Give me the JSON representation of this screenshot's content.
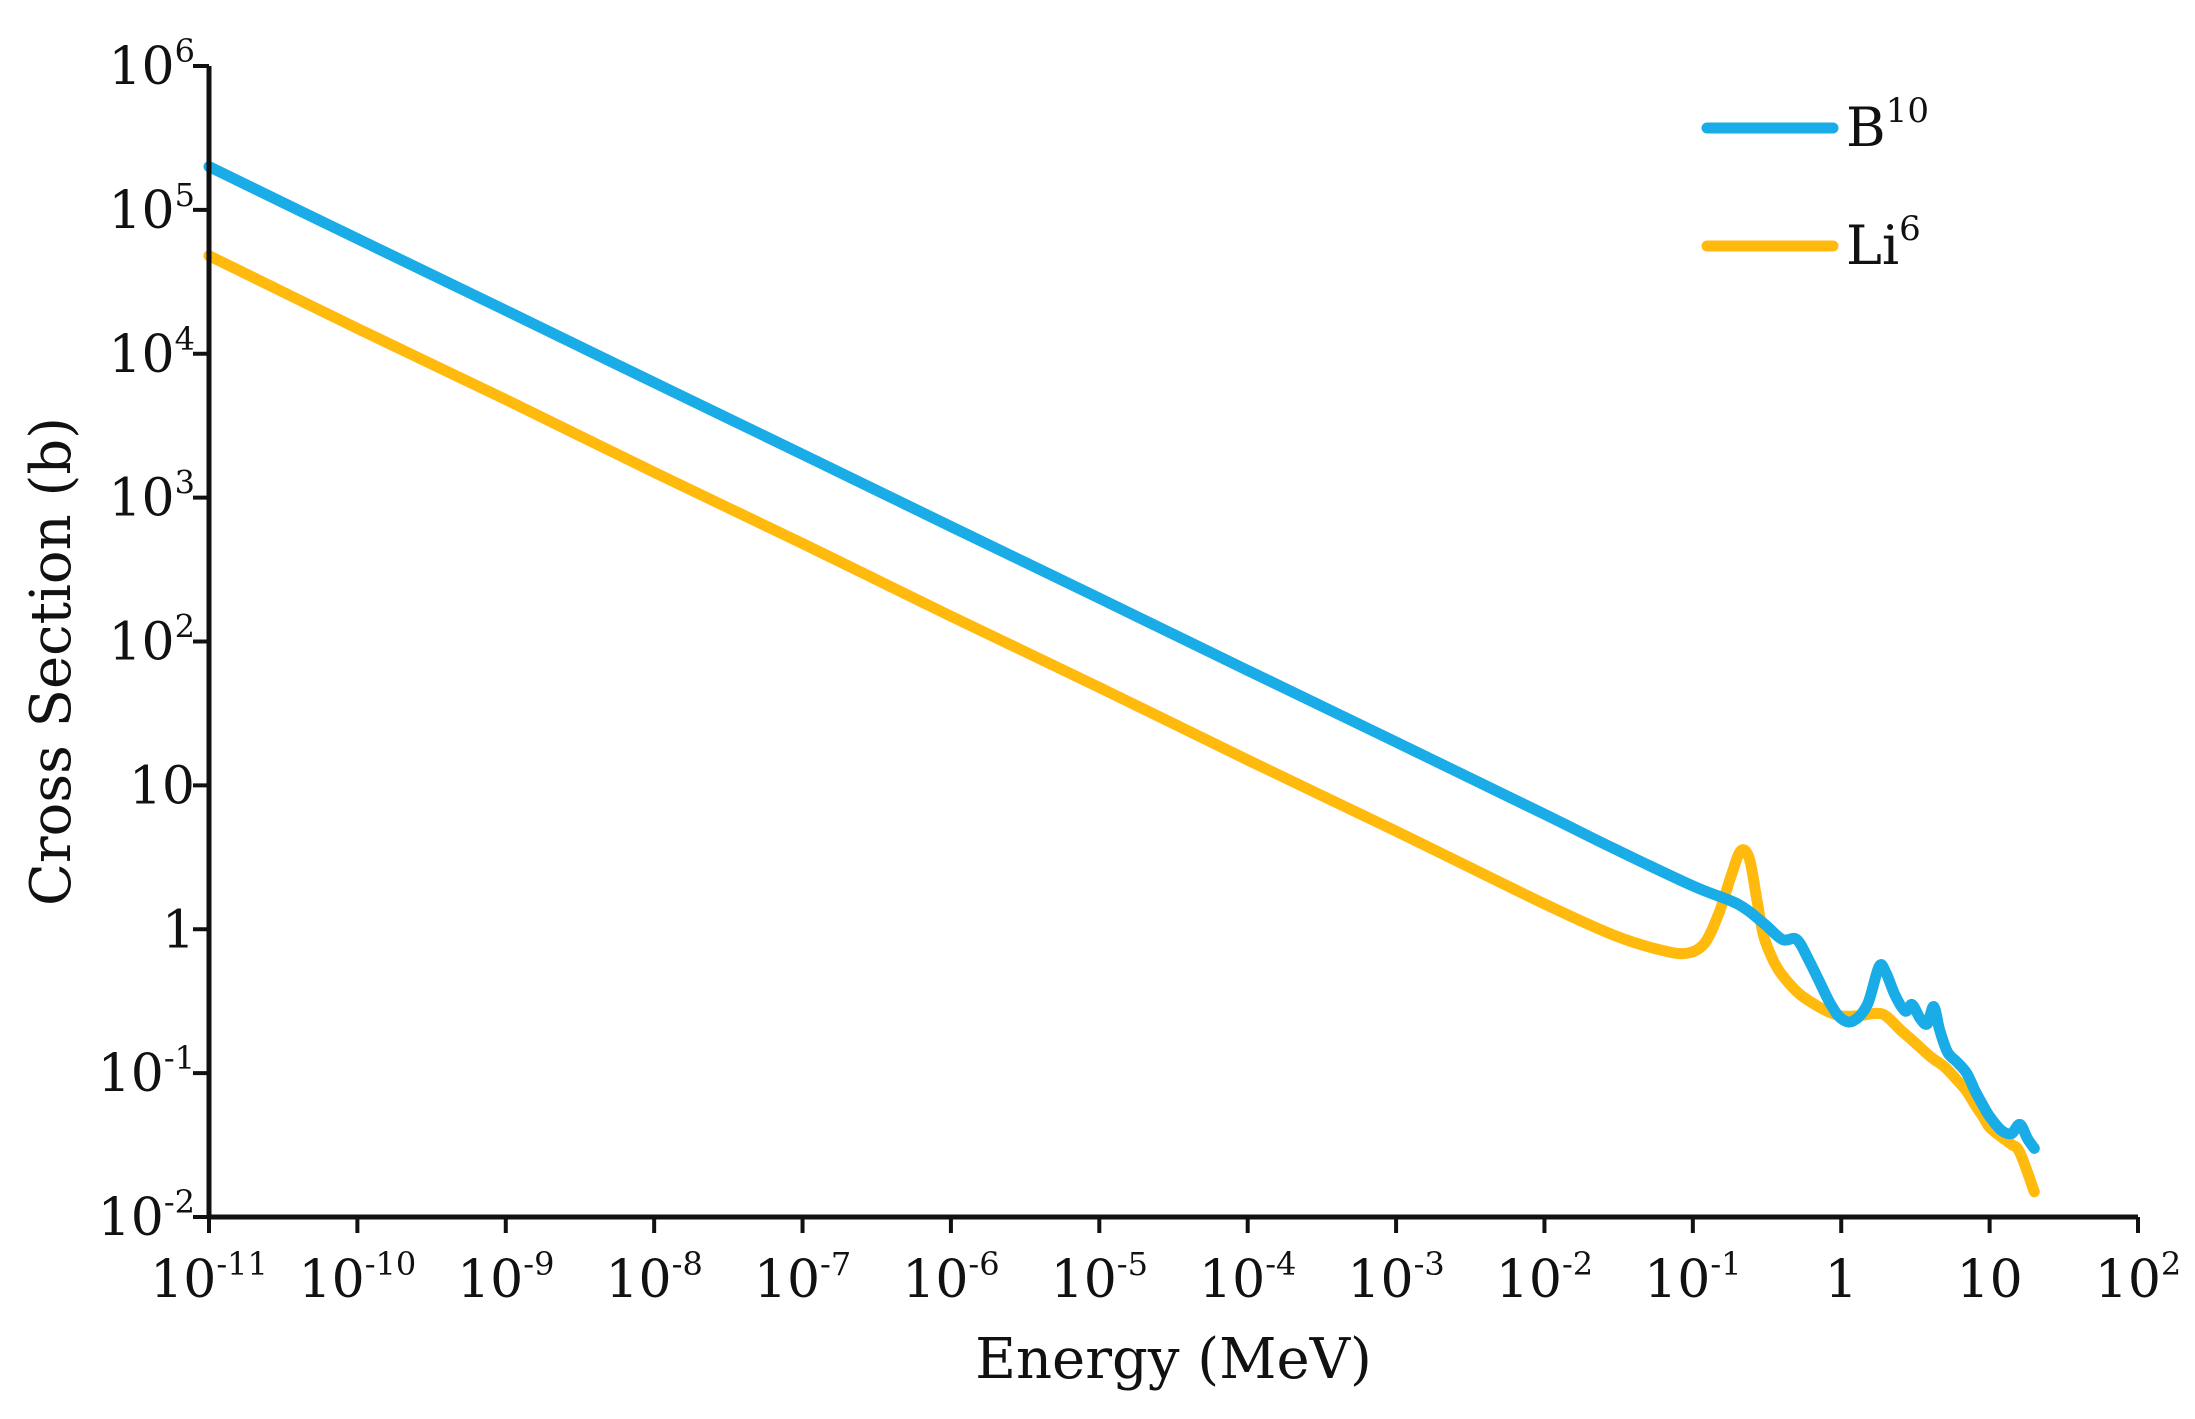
{
  "chart_data": {
    "type": "line",
    "xlabel": "Energy (MeV)",
    "ylabel": "Cross Section (b)",
    "x_scale": "log",
    "y_scale": "log",
    "xlim": [
      1e-11,
      100
    ],
    "ylim": [
      0.01,
      1000000
    ],
    "grid": false,
    "legend_position": "top-right",
    "x_ticks": [
      {
        "value": 1e-11,
        "base": "10",
        "exp": "-11"
      },
      {
        "value": 1e-10,
        "base": "10",
        "exp": "-10"
      },
      {
        "value": 1e-09,
        "base": "10",
        "exp": "-9"
      },
      {
        "value": 1e-08,
        "base": "10",
        "exp": "-8"
      },
      {
        "value": 1e-07,
        "base": "10",
        "exp": "-7"
      },
      {
        "value": 1e-06,
        "base": "10",
        "exp": "-6"
      },
      {
        "value": 1e-05,
        "base": "10",
        "exp": "-5"
      },
      {
        "value": 0.0001,
        "base": "10",
        "exp": "-4"
      },
      {
        "value": 0.001,
        "base": "10",
        "exp": "-3"
      },
      {
        "value": 0.01,
        "base": "10",
        "exp": "-2"
      },
      {
        "value": 0.1,
        "base": "10",
        "exp": "-1"
      },
      {
        "value": 1,
        "base": "1",
        "exp": ""
      },
      {
        "value": 10,
        "base": "10",
        "exp": ""
      },
      {
        "value": 100,
        "base": "10",
        "exp": "2"
      }
    ],
    "y_ticks": [
      {
        "value": 0.01,
        "base": "10",
        "exp": "-2"
      },
      {
        "value": 0.1,
        "base": "10",
        "exp": "-1"
      },
      {
        "value": 1,
        "base": "1",
        "exp": ""
      },
      {
        "value": 10,
        "base": "10",
        "exp": ""
      },
      {
        "value": 100,
        "base": "10",
        "exp": "2"
      },
      {
        "value": 1000,
        "base": "10",
        "exp": "3"
      },
      {
        "value": 10000,
        "base": "10",
        "exp": "4"
      },
      {
        "value": 100000,
        "base": "10",
        "exp": "5"
      },
      {
        "value": 1000000,
        "base": "10",
        "exp": "6"
      }
    ],
    "series": [
      {
        "name": "B",
        "name_sup": "10",
        "color": "#1AACE6",
        "x": [
          1e-11,
          1e-10,
          1e-09,
          1e-08,
          1e-07,
          1e-06,
          1e-05,
          0.0001,
          0.001,
          0.01,
          0.03,
          0.1,
          0.2,
          0.3,
          0.4,
          0.5,
          0.6,
          0.7,
          0.85,
          1.0,
          1.2,
          1.5,
          1.8,
          2.0,
          2.3,
          2.7,
          3.0,
          3.4,
          3.8,
          4.2,
          4.6,
          5.2,
          6.0,
          7.0,
          8.0,
          9.0,
          10,
          12,
          14,
          16,
          18,
          20
        ],
        "y": [
          200000,
          63000,
          20000,
          6300,
          2000,
          630,
          200,
          63,
          20,
          6.3,
          3.6,
          2.0,
          1.5,
          1.1,
          0.85,
          0.85,
          0.62,
          0.45,
          0.3,
          0.24,
          0.23,
          0.3,
          0.55,
          0.5,
          0.35,
          0.27,
          0.3,
          0.24,
          0.22,
          0.29,
          0.2,
          0.14,
          0.12,
          0.1,
          0.075,
          0.06,
          0.05,
          0.04,
          0.038,
          0.044,
          0.035,
          0.03
        ]
      },
      {
        "name": "Li",
        "name_sup": "6",
        "color": "#FFBA0D",
        "x": [
          1e-11,
          1e-10,
          1e-09,
          1e-08,
          1e-07,
          1e-06,
          1e-05,
          0.0001,
          0.001,
          0.01,
          0.03,
          0.06,
          0.09,
          0.12,
          0.15,
          0.18,
          0.21,
          0.24,
          0.27,
          0.3,
          0.35,
          0.4,
          0.5,
          0.6,
          0.8,
          1.0,
          1.3,
          1.7,
          2.0,
          2.5,
          3.0,
          4.0,
          5.0,
          6.0,
          7.0,
          8.0,
          9.0,
          10,
          12,
          14,
          16,
          20
        ],
        "y": [
          48000,
          15000,
          4800,
          1500,
          480,
          150,
          48,
          15,
          4.8,
          1.5,
          0.9,
          0.72,
          0.68,
          0.8,
          1.3,
          2.3,
          3.5,
          3.1,
          1.6,
          0.9,
          0.6,
          0.48,
          0.37,
          0.32,
          0.27,
          0.25,
          0.25,
          0.26,
          0.25,
          0.2,
          0.17,
          0.13,
          0.11,
          0.09,
          0.075,
          0.06,
          0.05,
          0.042,
          0.036,
          0.032,
          0.028,
          0.015
        ]
      }
    ]
  }
}
